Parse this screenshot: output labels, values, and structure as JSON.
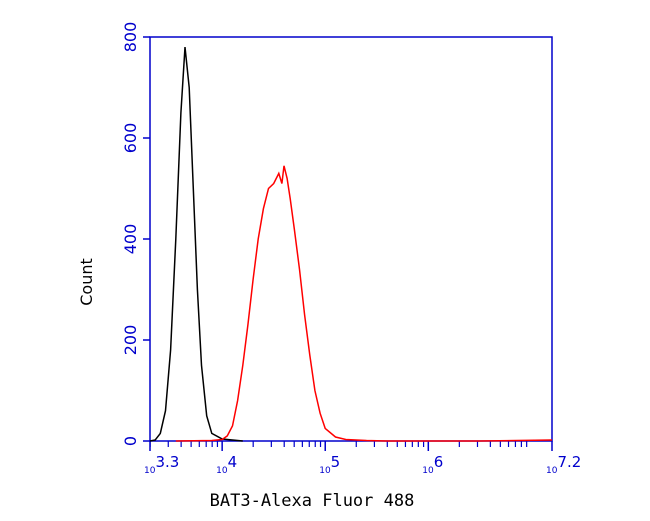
{
  "chart_data": {
    "type": "line",
    "x_label": "BAT3-Alexa Fluor 488",
    "y_label": "Count",
    "xscale": "log",
    "xlim": [
      1995.26,
      15848932
    ],
    "xticks": [
      {
        "value": 1995.26,
        "label": "10",
        "exponent": "3.3"
      },
      {
        "value": 10000,
        "label": "10",
        "exponent": "4"
      },
      {
        "value": 100000,
        "label": "10",
        "exponent": "5"
      },
      {
        "value": 1000000,
        "label": "10",
        "exponent": "6"
      },
      {
        "value": 15848932,
        "label": "10",
        "exponent": "7.2"
      }
    ],
    "x_minor_ticks": true,
    "ylim": [
      0,
      800
    ],
    "yticks": [
      0,
      200,
      400,
      600,
      800
    ],
    "axis_color": "#0000cc",
    "series": [
      {
        "color": "#000000",
        "x": [
          1995,
          2239,
          2512,
          2818,
          3162,
          3548,
          3981,
          4365,
          4786,
          5248,
          5754,
          6310,
          7079,
          7943,
          10000,
          12589,
          15849
        ],
        "values": [
          0,
          2,
          15,
          60,
          180,
          400,
          650,
          780,
          700,
          500,
          300,
          150,
          50,
          15,
          4,
          2,
          0
        ]
      },
      {
        "color": "#ff0000",
        "x": [
          3548,
          7943,
          10000,
          11220,
          12589,
          14125,
          15849,
          17783,
          19953,
          22387,
          25119,
          28184,
          31623,
          35481,
          38019,
          39811,
          42658,
          45709,
          50119,
          56234,
          63096,
          70795,
          79433,
          89125,
          100000,
          125893,
          158489,
          251189,
          398107,
          3162278,
          15848932
        ],
        "values": [
          0,
          1,
          3,
          10,
          30,
          80,
          150,
          230,
          320,
          400,
          460,
          500,
          510,
          530,
          510,
          545,
          520,
          480,
          420,
          340,
          250,
          170,
          100,
          55,
          25,
          8,
          3,
          1,
          0,
          0,
          2
        ]
      }
    ]
  }
}
